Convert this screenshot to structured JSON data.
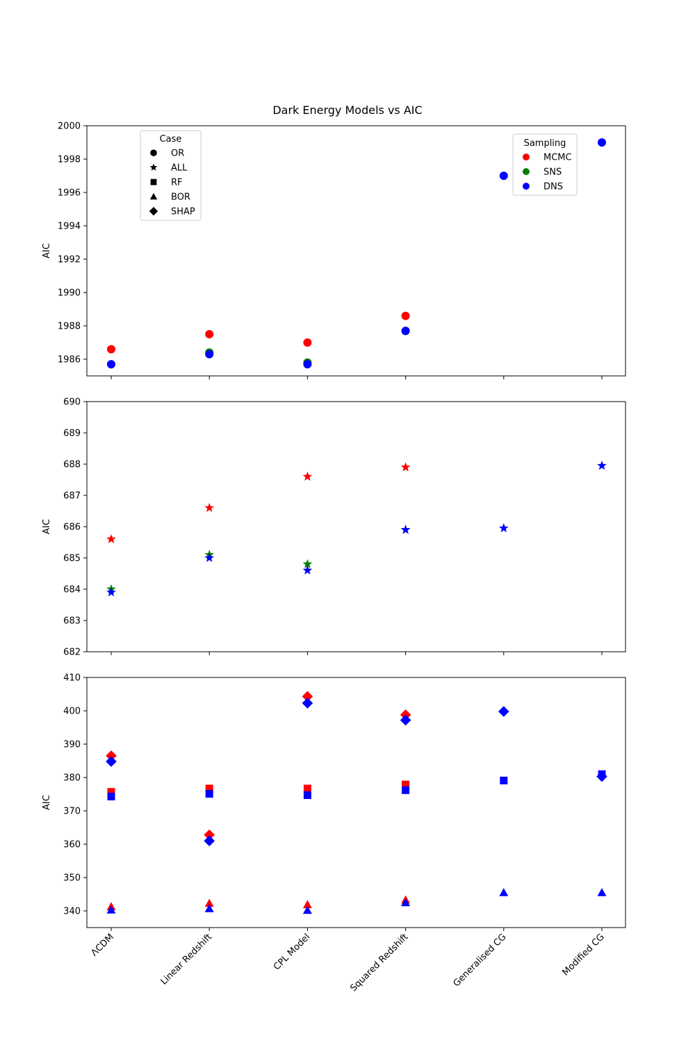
{
  "chart_data": {
    "type": "scatter",
    "title": "Dark Energy Models vs AIC",
    "categories": [
      "ΛCDM",
      "Linear Redshift",
      "CPL Model",
      "Squared Redshift",
      "Generalised CG",
      "Modified CG"
    ],
    "sampling_colors": {
      "MCMC": "#ff0000",
      "SNS": "#008000",
      "DNS": "#0000ff"
    },
    "legend_case": {
      "title": "Case",
      "entries": [
        {
          "label": "OR",
          "marker": "circle"
        },
        {
          "label": "ALL",
          "marker": "star"
        },
        {
          "label": "RF",
          "marker": "square"
        },
        {
          "label": "BOR",
          "marker": "triangle"
        },
        {
          "label": "SHAP",
          "marker": "diamond"
        }
      ]
    },
    "legend_sampling": {
      "title": "Sampling",
      "entries": [
        {
          "label": "MCMC",
          "color": "#ff0000"
        },
        {
          "label": "SNS",
          "color": "#008000"
        },
        {
          "label": "DNS",
          "color": "#0000ff"
        }
      ]
    },
    "panels": [
      {
        "ylabel": "AIC",
        "ylim": [
          1985,
          2000
        ],
        "yticks": [
          1986,
          1988,
          1990,
          1992,
          1994,
          1996,
          1998,
          2000
        ],
        "series": [
          {
            "case": "OR",
            "sampling": "MCMC",
            "values": [
              1986.6,
              1987.5,
              1987.0,
              1988.6,
              null,
              null
            ]
          },
          {
            "case": "OR",
            "sampling": "SNS",
            "values": [
              1985.7,
              1986.4,
              1985.8,
              1987.7,
              null,
              null
            ]
          },
          {
            "case": "OR",
            "sampling": "DNS",
            "values": [
              1985.7,
              1986.3,
              1985.7,
              1987.7,
              1997.0,
              1999.0
            ]
          }
        ]
      },
      {
        "ylabel": "AIC",
        "ylim": [
          682,
          690
        ],
        "yticks": [
          682,
          683,
          684,
          685,
          686,
          687,
          688,
          689,
          690
        ],
        "series": [
          {
            "case": "ALL",
            "sampling": "MCMC",
            "values": [
              685.6,
              686.6,
              687.6,
              687.9,
              null,
              null
            ]
          },
          {
            "case": "ALL",
            "sampling": "SNS",
            "values": [
              684.0,
              685.1,
              684.8,
              685.9,
              null,
              null
            ]
          },
          {
            "case": "ALL",
            "sampling": "DNS",
            "values": [
              683.9,
              685.0,
              684.6,
              685.9,
              685.95,
              687.95
            ]
          }
        ]
      },
      {
        "ylabel": "AIC",
        "ylim": [
          335,
          410
        ],
        "yticks": [
          340,
          350,
          360,
          370,
          380,
          390,
          400,
          410
        ],
        "series": [
          {
            "case": "SHAP",
            "sampling": "MCMC",
            "values": [
              386.5,
              362.8,
              404.3,
              398.8,
              null,
              null
            ]
          },
          {
            "case": "SHAP",
            "sampling": "DNS",
            "values": [
              384.8,
              361.0,
              402.3,
              397.2,
              399.8,
              380.3
            ]
          },
          {
            "case": "RF",
            "sampling": "MCMC",
            "values": [
              375.7,
              376.7,
              376.7,
              377.9,
              null,
              null
            ]
          },
          {
            "case": "RF",
            "sampling": "DNS",
            "values": [
              374.3,
              375.1,
              374.7,
              376.2,
              379.1,
              381.0
            ]
          },
          {
            "case": "BOR",
            "sampling": "MCMC",
            "values": [
              341.3,
              342.3,
              341.9,
              343.3,
              null,
              null
            ]
          },
          {
            "case": "BOR",
            "sampling": "DNS",
            "values": [
              340.3,
              340.7,
              340.2,
              342.5,
              345.5,
              345.5
            ]
          }
        ]
      }
    ]
  }
}
